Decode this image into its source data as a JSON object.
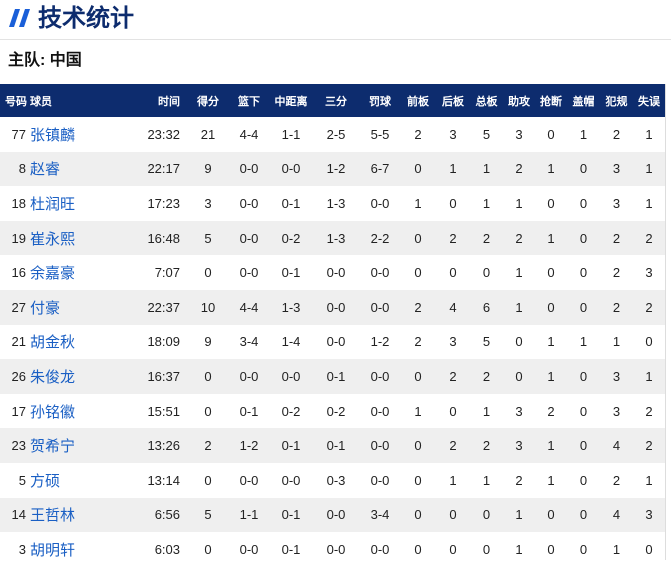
{
  "header": {
    "title": "技术统计",
    "team_label": "主队: 中国",
    "accent": "#1a5fd8",
    "header_bg": "#0d2c6e",
    "icon": "double-slash-icon"
  },
  "table": {
    "columns": [
      "号码",
      "球员",
      "时间",
      "得分",
      "篮下",
      "中距离",
      "三分",
      "罚球",
      "前板",
      "后板",
      "总板",
      "助攻",
      "抢断",
      "盖帽",
      "犯规",
      "失误"
    ],
    "rows": [
      [
        "77",
        "张镇麟",
        "23:32",
        "21",
        "4-4",
        "1-1",
        "2-5",
        "5-5",
        "2",
        "3",
        "5",
        "3",
        "0",
        "1",
        "2",
        "1"
      ],
      [
        "8",
        "赵睿",
        "22:17",
        "9",
        "0-0",
        "0-0",
        "1-2",
        "6-7",
        "0",
        "1",
        "1",
        "2",
        "1",
        "0",
        "3",
        "1"
      ],
      [
        "18",
        "杜润旺",
        "17:23",
        "3",
        "0-0",
        "0-1",
        "1-3",
        "0-0",
        "1",
        "0",
        "1",
        "1",
        "0",
        "0",
        "3",
        "1"
      ],
      [
        "19",
        "崔永熙",
        "16:48",
        "5",
        "0-0",
        "0-2",
        "1-3",
        "2-2",
        "0",
        "2",
        "2",
        "2",
        "1",
        "0",
        "2",
        "2"
      ],
      [
        "16",
        "余嘉豪",
        "7:07",
        "0",
        "0-0",
        "0-1",
        "0-0",
        "0-0",
        "0",
        "0",
        "0",
        "1",
        "0",
        "0",
        "2",
        "3"
      ],
      [
        "27",
        "付豪",
        "22:37",
        "10",
        "4-4",
        "1-3",
        "0-0",
        "0-0",
        "2",
        "4",
        "6",
        "1",
        "0",
        "0",
        "2",
        "2"
      ],
      [
        "21",
        "胡金秋",
        "18:09",
        "9",
        "3-4",
        "1-4",
        "0-0",
        "1-2",
        "2",
        "3",
        "5",
        "0",
        "1",
        "1",
        "1",
        "0"
      ],
      [
        "26",
        "朱俊龙",
        "16:37",
        "0",
        "0-0",
        "0-0",
        "0-1",
        "0-0",
        "0",
        "2",
        "2",
        "0",
        "1",
        "0",
        "3",
        "1"
      ],
      [
        "17",
        "孙铭徽",
        "15:51",
        "0",
        "0-1",
        "0-2",
        "0-2",
        "0-0",
        "1",
        "0",
        "1",
        "3",
        "2",
        "0",
        "3",
        "2"
      ],
      [
        "23",
        "贺希宁",
        "13:26",
        "2",
        "1-2",
        "0-1",
        "0-1",
        "0-0",
        "0",
        "2",
        "2",
        "3",
        "1",
        "0",
        "4",
        "2"
      ],
      [
        "5",
        "方硕",
        "13:14",
        "0",
        "0-0",
        "0-0",
        "0-3",
        "0-0",
        "0",
        "1",
        "1",
        "2",
        "1",
        "0",
        "2",
        "1"
      ],
      [
        "14",
        "王哲林",
        "6:56",
        "5",
        "1-1",
        "0-1",
        "0-0",
        "3-4",
        "0",
        "0",
        "0",
        "1",
        "0",
        "0",
        "4",
        "3"
      ],
      [
        "3",
        "胡明轩",
        "6:03",
        "0",
        "0-0",
        "0-1",
        "0-0",
        "0-0",
        "0",
        "0",
        "0",
        "1",
        "0",
        "0",
        "1",
        "0"
      ]
    ]
  }
}
